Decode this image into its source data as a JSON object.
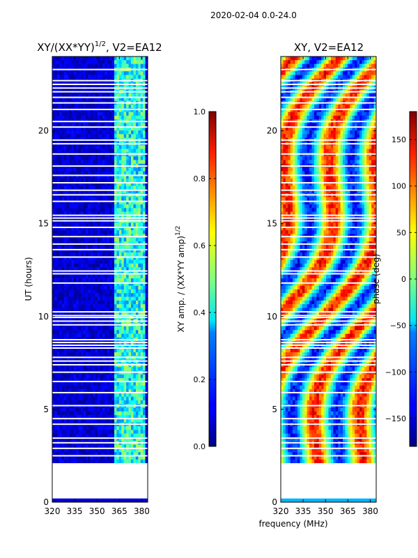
{
  "chart_data": {
    "suptitle": "2020-02-04 0.0-24.0",
    "shared_xlabel": "frequency (MHz)",
    "panels": [
      {
        "type": "heatmap",
        "title": "XY/(XX*YY)^{1/2}, V2=EA12",
        "title_main": "XY/(XX*YY)",
        "title_sup": "1/2",
        "title_tail": ", V2=EA12",
        "xlim": [
          320,
          384
        ],
        "ylim": [
          0,
          24
        ],
        "xticks": [
          320,
          335,
          350,
          365,
          380
        ],
        "yticks": [
          0,
          5,
          10,
          15,
          20
        ],
        "ylabel": "UT (hours)",
        "data_start_hour": 2.1,
        "colormap": "jet",
        "colorbar": {
          "label_main": "XY amp. / (XX*YY amp)",
          "label_sup": "1/2",
          "vmin": 0.0,
          "vmax": 1.0,
          "ticks": [
            0.0,
            0.2,
            0.4,
            0.6,
            0.8,
            1.0
          ],
          "tick_labels": [
            "0.0",
            "0.2",
            "0.4",
            "0.6",
            "0.8",
            "1.0"
          ]
        }
      },
      {
        "type": "heatmap",
        "title": "XY, V2=EA12",
        "xlim": [
          320,
          384
        ],
        "ylim": [
          0,
          24
        ],
        "xticks": [
          320,
          335,
          350,
          365,
          380
        ],
        "yticks": [
          0,
          5,
          10,
          15,
          20
        ],
        "ylabel": "",
        "data_start_hour": 2.1,
        "colormap": "jet",
        "colorbar": {
          "label_main": "phase (deg)",
          "vmin": -180,
          "vmax": 180,
          "ticks": [
            -150,
            -100,
            -50,
            0,
            50,
            100,
            150
          ],
          "tick_labels": [
            "−150",
            "−100",
            "−50",
            "0",
            "50",
            "100",
            "150"
          ]
        }
      }
    ],
    "flagged_hours": [
      2.5,
      2.9,
      3.2,
      3.45,
      4.2,
      4.5,
      5.2,
      5.9,
      6.5,
      7.0,
      7.4,
      7.6,
      7.8,
      8.3,
      8.45,
      8.6,
      8.75,
      9.55,
      9.75,
      9.95,
      10.05,
      10.25,
      11.8,
      12.3,
      12.45,
      13.2,
      13.6,
      13.9,
      14.3,
      14.8,
      15.15,
      15.3,
      15.45,
      16.2,
      16.55,
      16.8,
      17.2,
      17.6,
      18.1,
      18.75,
      19.3,
      19.5,
      20.2,
      20.5,
      21.15,
      21.5,
      21.8,
      22.1,
      22.3,
      22.5,
      22.7,
      23.3
    ]
  }
}
